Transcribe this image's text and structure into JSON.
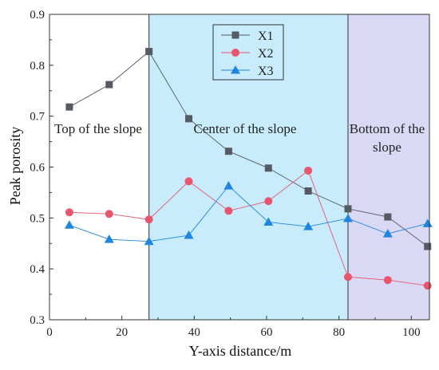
{
  "chart_data": {
    "type": "line",
    "xlabel": "Y-axis distance/m",
    "ylabel": "Peak porosity",
    "xlim": [
      0,
      105
    ],
    "ylim": [
      0.3,
      0.9
    ],
    "x_ticks": [
      "0",
      "20",
      "40",
      "60",
      "80",
      "100"
    ],
    "y_ticks": [
      "0.3",
      "0.4",
      "0.5",
      "0.6",
      "0.7",
      "0.8",
      "0.9"
    ],
    "grid": false,
    "legend_position": "top-center",
    "regions": [
      {
        "label": "Top of the slope",
        "x_start": 0,
        "x_end": 27.5,
        "fill": "#ffffff"
      },
      {
        "label": "Center of the slope",
        "x_start": 27.5,
        "x_end": 82.5,
        "fill": "#c8ecfb"
      },
      {
        "label_line1": "Bottom of the",
        "label_line2": "slope",
        "x_start": 82.5,
        "x_end": 105,
        "fill": "#d9d9f5"
      }
    ],
    "x": [
      5.5,
      16.5,
      27.5,
      38.5,
      49.5,
      60.5,
      71.5,
      82.5,
      93.5,
      104.5
    ],
    "series": [
      {
        "name": "X1",
        "marker": "square",
        "color": "#555a63",
        "values": [
          0.718,
          0.762,
          0.827,
          0.695,
          0.631,
          0.598,
          0.553,
          0.518,
          0.502,
          0.444
        ]
      },
      {
        "name": "X2",
        "marker": "circle",
        "color": "#e8556c",
        "values": [
          0.511,
          0.508,
          0.497,
          0.572,
          0.514,
          0.533,
          0.593,
          0.384,
          0.378,
          0.367
        ]
      },
      {
        "name": "X3",
        "marker": "triangle",
        "color": "#1f86e0",
        "values": [
          0.486,
          0.458,
          0.454,
          0.466,
          0.563,
          0.492,
          0.483,
          0.499,
          0.469,
          0.489
        ]
      }
    ]
  }
}
